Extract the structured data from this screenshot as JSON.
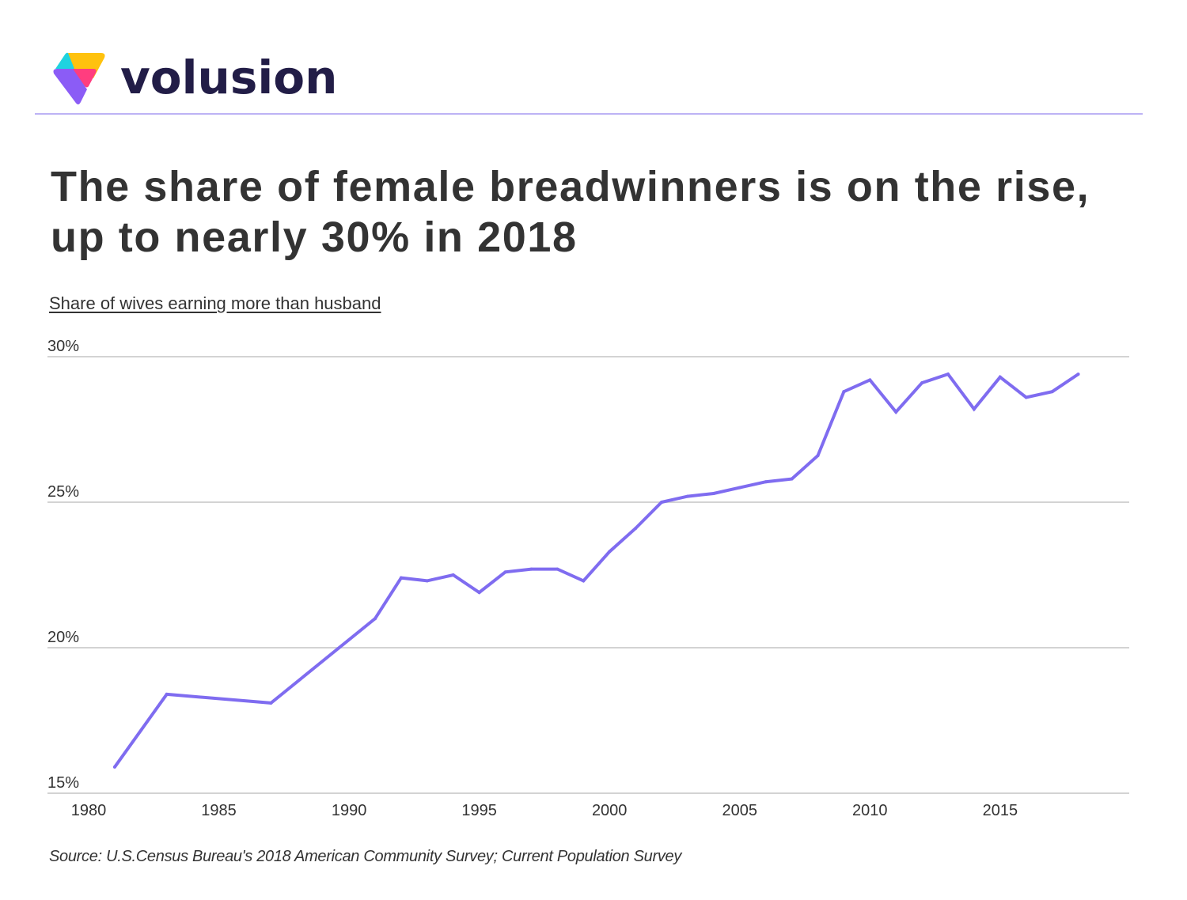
{
  "brand": {
    "name": "volusion",
    "colors": {
      "wordmark": "#221D47",
      "logo_yellow": "#FFC20E",
      "logo_cyan": "#1ED3E0",
      "logo_pink": "#FF3D7F",
      "logo_purple": "#8B5CF6",
      "separator": "#BDB3F5"
    }
  },
  "title_line1": "The share of female breadwinners is on the rise,",
  "title_line2": "up to nearly 30% in 2018",
  "source": "Source:  U.S.Census Bureau's 2018 American Community Survey; Current Population Survey",
  "chart_data": {
    "type": "line",
    "title": "The share of female breadwinners is on the rise, up to nearly 30% in 2018",
    "subtitle": "Share of wives earning more than husband",
    "xlabel": "",
    "ylabel": "Share of wives earning more than husband",
    "xlim": [
      1979.6,
      2019.5
    ],
    "ylim": [
      15,
      30
    ],
    "grid": true,
    "legend": "none",
    "line_color": "#7F6CF0",
    "grid_color": "#D3D3D3",
    "x_ticks": [
      1980,
      1985,
      1990,
      1995,
      2000,
      2005,
      2010,
      2015
    ],
    "x_tick_labels": [
      "1980",
      "1985",
      "1990",
      "1995",
      "2000",
      "2005",
      "2010",
      "2015"
    ],
    "y_ticks": [
      15,
      20,
      25,
      30
    ],
    "y_tick_labels": [
      "15%",
      "20%",
      "25%",
      "30%"
    ],
    "series": [
      {
        "name": "Share of wives earning more than husband",
        "x": [
          1981,
          1983,
          1987,
          1991,
          1992,
          1993,
          1994,
          1995,
          1996,
          1997,
          1998,
          1999,
          2000,
          2001,
          2002,
          2003,
          2004,
          2005,
          2006,
          2007,
          2008,
          2009,
          2010,
          2011,
          2012,
          2013,
          2014,
          2015,
          2016,
          2017,
          2018
        ],
        "values": [
          15.9,
          18.4,
          18.1,
          21.0,
          22.4,
          22.3,
          22.5,
          21.9,
          22.6,
          22.7,
          22.7,
          22.3,
          23.3,
          24.1,
          25.0,
          25.2,
          25.3,
          25.5,
          25.7,
          25.8,
          26.6,
          28.8,
          29.2,
          28.1,
          29.1,
          29.4,
          28.2,
          29.3,
          28.6,
          28.8,
          29.4
        ]
      }
    ]
  }
}
